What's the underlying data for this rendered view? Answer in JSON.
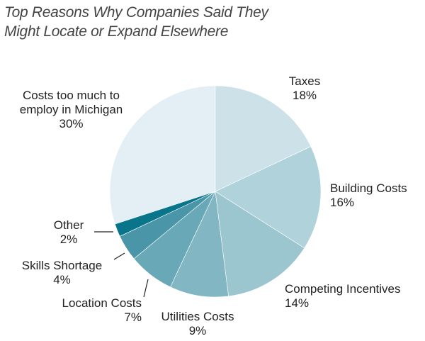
{
  "chart_data": {
    "type": "pie",
    "title_lines": [
      "Top Reasons Why Companies Said They",
      "Might Locate or Expand Elsewhere"
    ],
    "start": "12 o'clock, clockwise",
    "slices": [
      {
        "label": "Taxes",
        "value": 18,
        "value_label": "18%",
        "color": "#cde2e8"
      },
      {
        "label": "Building Costs",
        "value": 16,
        "value_label": "16%",
        "color": "#b0d3db"
      },
      {
        "label": "Competing Incentives",
        "value": 14,
        "value_label": "14%",
        "color": "#9cc6cf"
      },
      {
        "label": "Utilities Costs",
        "value": 9,
        "value_label": "9%",
        "color": "#82b6c3"
      },
      {
        "label": "Location Costs",
        "value": 7,
        "value_label": "7%",
        "color": "#68a8b7"
      },
      {
        "label": "Skills Shortage",
        "value": 4,
        "value_label": "4%",
        "color": "#4a95a7"
      },
      {
        "label": "Other",
        "value": 2,
        "value_label": "2%",
        "color": "#08758b"
      },
      {
        "label": "Costs too much to employ in Michigan",
        "label_lines": [
          "Costs too much to",
          "employ in Michigan"
        ],
        "value": 30,
        "value_label": "30%",
        "color": "#e3eff4"
      }
    ]
  }
}
